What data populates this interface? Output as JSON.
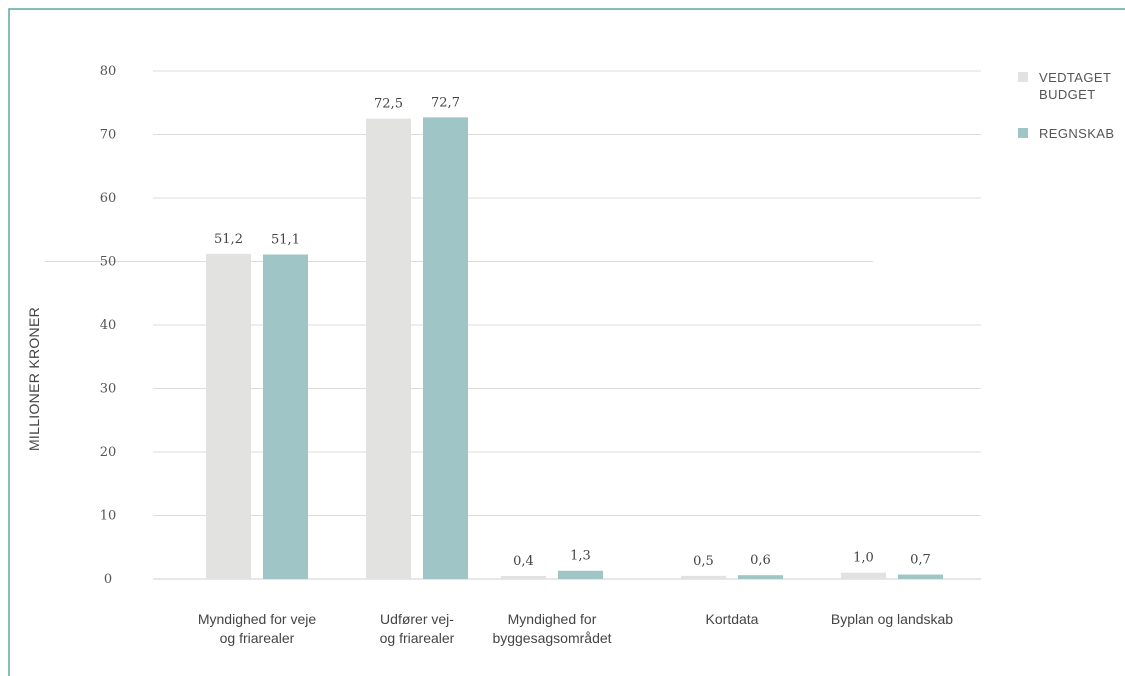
{
  "chart_data": {
    "type": "bar",
    "ylabel": "MILLIONER KRONER",
    "ylim": [
      0,
      80
    ],
    "yticks": [
      "0",
      "10",
      "20",
      "30",
      "40",
      "50",
      "60",
      "70",
      "80"
    ],
    "grid": true,
    "legend_position": "top-right",
    "categories": [
      [
        "Myndighed for veje",
        "og friarealer"
      ],
      [
        "Udfører vej-",
        "og friarealer"
      ],
      [
        "Myndighed for",
        "byggesagsområdet"
      ],
      [
        "Kortdata"
      ],
      [
        "Byplan og landskab"
      ]
    ],
    "series": [
      {
        "name": "VEDTAGET BUDGET",
        "legend_lines": [
          "VEDTAGET",
          "BUDGET"
        ],
        "color": "#e2e3e1",
        "values": [
          51.2,
          72.5,
          0.4,
          0.5,
          1.0
        ],
        "labels": [
          "51,2",
          "72,5",
          "0,4",
          "0,5",
          "1,0"
        ]
      },
      {
        "name": "REGNSKAB",
        "legend_lines": [
          "REGNSKAB"
        ],
        "color": "#9fc5c6",
        "values": [
          51.1,
          72.7,
          1.3,
          0.6,
          0.7
        ],
        "labels": [
          "51,1",
          "72,7",
          "1,3",
          "0,6",
          "0,7"
        ]
      }
    ]
  },
  "colors": {
    "frame": "#5aa9a6",
    "grid": "#dcdcdc",
    "text": "#444444"
  }
}
